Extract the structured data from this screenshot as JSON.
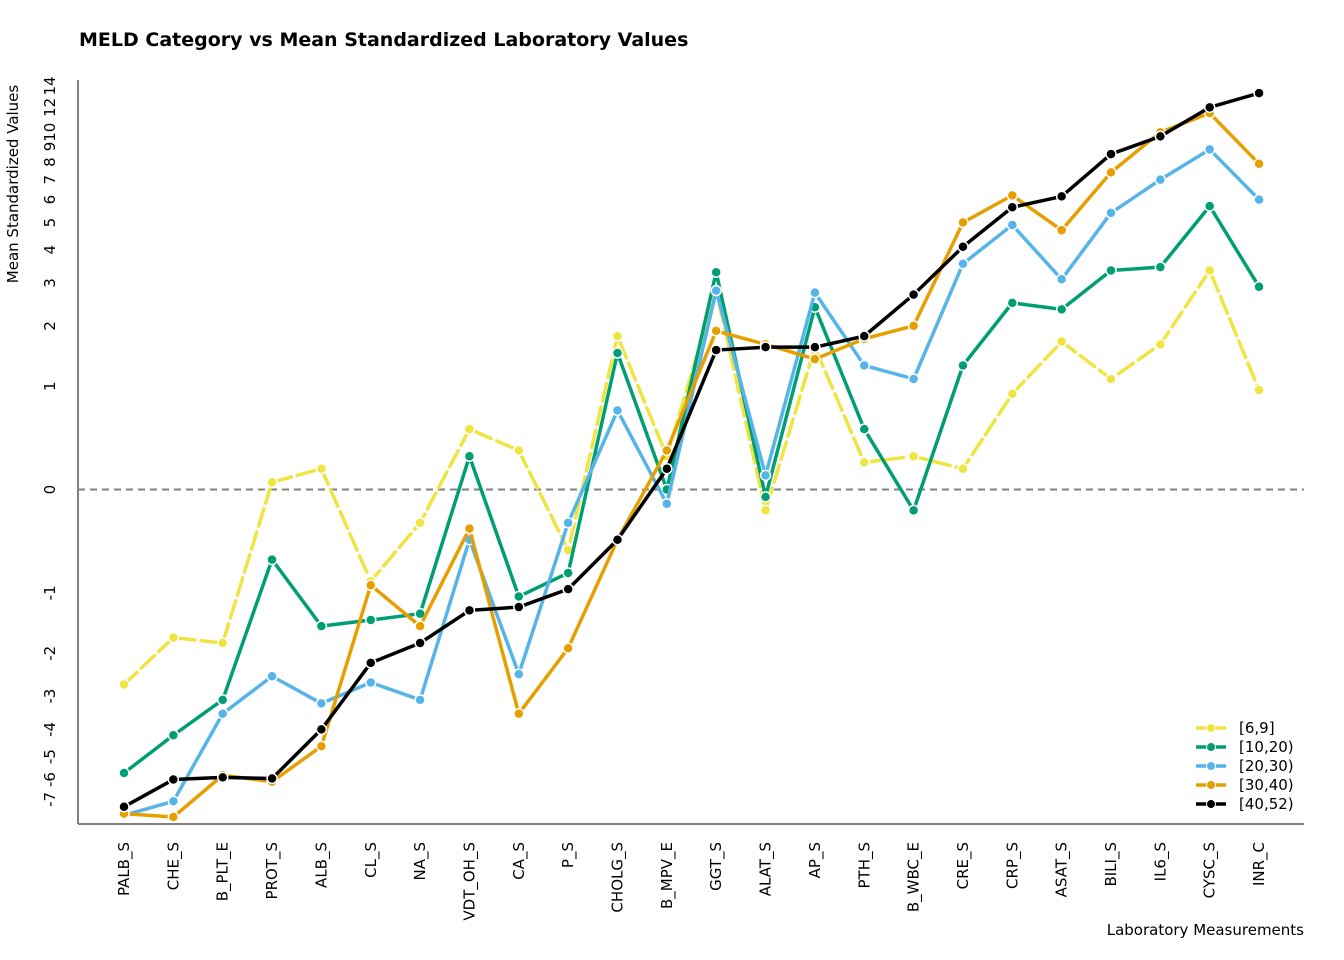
{
  "chart_data": {
    "type": "line",
    "title": "MELD Category vs Mean Standardized Laboratory Values",
    "xlabel": "Laboratory Measurements",
    "ylabel": "Mean Standardized Values",
    "categories": [
      "PALB_S",
      "CHE_S",
      "B_PLT_E",
      "PROT_S",
      "ALB_S",
      "CL_S",
      "NA_S",
      "VDT_OH_S",
      "CA_S",
      "P_S",
      "CHOLG_S",
      "B_MPV_E",
      "GGT_S",
      "ALAT_S",
      "AP_S",
      "PTH_S",
      "B_WBC_E",
      "CRE_S",
      "CRP_S",
      "ASAT_S",
      "BILI_S",
      "IL6_S",
      "CYSC_S",
      "INR_C"
    ],
    "y_ticks": [
      "-7",
      "-6",
      "-5",
      "-4",
      "-3",
      "-2",
      "-1",
      "0",
      "1",
      "2",
      "3",
      "4",
      "5",
      "6",
      "7",
      "8",
      "9",
      "10",
      "12",
      "14"
    ],
    "y_scale": "pseudo-log (symmetric)",
    "reference_line": 0,
    "legend_position": "bottom-right",
    "series": [
      {
        "name": "[6,9]",
        "color": "#F0E442",
        "values": [
          -2.7,
          -1.7,
          -1.8,
          0.05,
          0.15,
          -0.85,
          -0.25,
          0.5,
          0.3,
          -0.5,
          1.8,
          0.25,
          2.8,
          -0.15,
          1.6,
          0.2,
          0.25,
          0.15,
          0.9,
          1.7,
          1.1,
          1.65,
          3.35,
          0.95
        ]
      },
      {
        "name": "[10,20)",
        "color": "#009E73",
        "values": [
          -5.7,
          -4.2,
          -3.1,
          -0.6,
          -1.5,
          -1.4,
          -1.3,
          0.25,
          -1.05,
          -0.75,
          1.5,
          0.0,
          3.3,
          -0.05,
          2.4,
          0.5,
          -0.15,
          1.3,
          2.5,
          2.35,
          3.35,
          3.45,
          5.7,
          2.9
        ]
      },
      {
        "name": "[20,30)",
        "color": "#56B4E9",
        "values": [
          -7.9,
          -7.1,
          -3.5,
          -2.5,
          -3.2,
          -2.65,
          -3.1,
          -0.4,
          -2.45,
          -0.25,
          0.7,
          -0.1,
          2.8,
          0.1,
          2.75,
          1.3,
          1.1,
          3.55,
          4.9,
          3.1,
          5.4,
          7.0,
          8.8,
          6.0
        ]
      },
      {
        "name": "[30,40)",
        "color": "#E69F00",
        "values": [
          -7.8,
          -8.0,
          -5.8,
          -6.1,
          -4.6,
          -0.9,
          -1.5,
          -0.3,
          -3.5,
          -1.9,
          -0.4,
          0.3,
          1.9,
          1.65,
          1.4,
          1.75,
          2.0,
          5.0,
          6.2,
          4.7,
          7.4,
          10.0,
          11.5,
          7.9
        ]
      },
      {
        "name": "[40,52)",
        "color": "#000000",
        "values": [
          -7.4,
          -6.0,
          -5.9,
          -5.95,
          -4.0,
          -2.2,
          -1.8,
          -1.25,
          -1.2,
          -0.95,
          -0.4,
          0.15,
          1.55,
          1.6,
          1.6,
          1.8,
          2.7,
          4.1,
          5.65,
          6.15,
          8.5,
          9.7,
          12.0,
          13.3
        ]
      }
    ]
  }
}
